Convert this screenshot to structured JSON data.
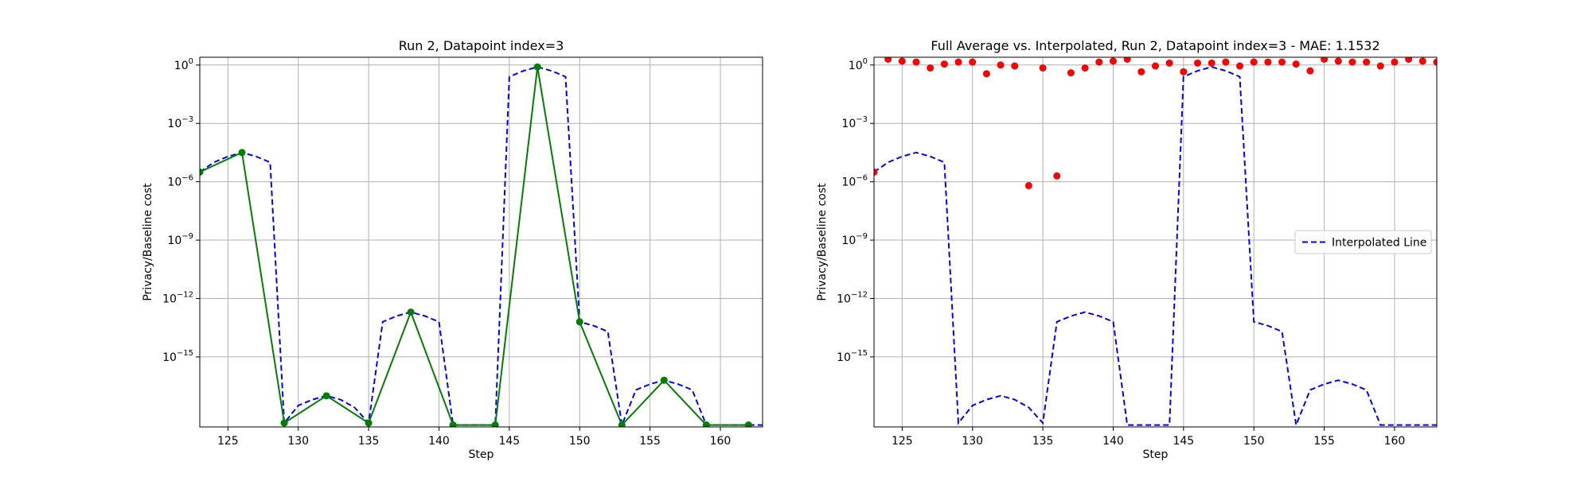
{
  "figure": {
    "background": "#ffffff"
  },
  "chart_data": [
    {
      "type": "line",
      "title": "Run 2, Datapoint index=3",
      "xlabel": "Step",
      "ylabel": "Privacy/Baseline cost",
      "yscale": "log",
      "xlim": [
        123,
        163
      ],
      "ylim_log10": [
        -18.6,
        0.4
      ],
      "grid": true,
      "legend": null,
      "xticks": [
        125,
        130,
        135,
        140,
        145,
        150,
        155,
        160
      ],
      "yticks": [
        {
          "exp": 0,
          "label": "10",
          "sup": "0"
        },
        {
          "exp": -3,
          "label": "10",
          "sup": "−3"
        },
        {
          "exp": -6,
          "label": "10",
          "sup": "−6"
        },
        {
          "exp": -9,
          "label": "10",
          "sup": "−9"
        },
        {
          "exp": -12,
          "label": "10",
          "sup": "−12"
        },
        {
          "exp": -15,
          "label": "10",
          "sup": "−15"
        }
      ],
      "series": [
        {
          "style": "dashed",
          "color": "#0000ff",
          "x": [
            123,
            124,
            125,
            126,
            127,
            128,
            129,
            130,
            131,
            132,
            133,
            134,
            135,
            136,
            137,
            138,
            139,
            140,
            141,
            142,
            143,
            144,
            145,
            146,
            147,
            148,
            149,
            150,
            151,
            152,
            153,
            154,
            155,
            156,
            157,
            158,
            159,
            160,
            161,
            162,
            163
          ],
          "log10_y": [
            -5.5,
            -5,
            -4.7,
            -4.5,
            -4.7,
            -5,
            -18.4,
            -17.5,
            -17.2,
            -17,
            -17.2,
            -17.6,
            -18.4,
            -13.2,
            -12.9,
            -12.7,
            -12.9,
            -13.2,
            -18.5,
            -18.5,
            -18.5,
            -18.5,
            -0.6,
            -0.3,
            -0.1,
            -0.3,
            -0.6,
            -13.2,
            -13.4,
            -13.7,
            -18.5,
            -16.7,
            -16.4,
            -16.2,
            -16.4,
            -16.7,
            -18.5,
            -18.5,
            -18.5,
            -18.5,
            -18.5
          ]
        },
        {
          "style": "solid",
          "color": "#008000",
          "marker": "o",
          "x": [
            123,
            126,
            129,
            132,
            135,
            138,
            141,
            144,
            147,
            150,
            153,
            156,
            159,
            162
          ],
          "log10_y": [
            -5.5,
            -4.5,
            -18.4,
            -17,
            -18.4,
            -12.7,
            -18.5,
            -18.5,
            -0.1,
            -13.2,
            -18.5,
            -16.2,
            -18.5,
            -18.5
          ]
        }
      ]
    },
    {
      "type": "scatter",
      "title": "Full Average vs. Interpolated, Run 2, Datapoint index=3 - MAE: 1.1532",
      "xlabel": "Step",
      "ylabel": "Privacy/Baseline cost",
      "yscale": "log",
      "xlim": [
        123,
        163
      ],
      "ylim_log10": [
        -18.6,
        0.4
      ],
      "grid": true,
      "legend": "center-right",
      "xticks": [
        125,
        130,
        135,
        140,
        145,
        150,
        155,
        160
      ],
      "yticks": [
        {
          "exp": 0,
          "label": "10",
          "sup": "0"
        },
        {
          "exp": -3,
          "label": "10",
          "sup": "−3"
        },
        {
          "exp": -6,
          "label": "10",
          "sup": "−6"
        },
        {
          "exp": -9,
          "label": "10",
          "sup": "−9"
        },
        {
          "exp": -12,
          "label": "10",
          "sup": "−12"
        },
        {
          "exp": -15,
          "label": "10",
          "sup": "−15"
        }
      ],
      "series": [
        {
          "name": "Interpolated Line",
          "style": "dashed",
          "color": "#0000ff",
          "x": [
            123,
            124,
            125,
            126,
            127,
            128,
            129,
            130,
            131,
            132,
            133,
            134,
            135,
            136,
            137,
            138,
            139,
            140,
            141,
            142,
            143,
            144,
            145,
            146,
            147,
            148,
            149,
            150,
            151,
            152,
            153,
            154,
            155,
            156,
            157,
            158,
            159,
            160,
            161,
            162,
            163
          ],
          "log10_y": [
            -5.5,
            -5,
            -4.7,
            -4.5,
            -4.7,
            -5,
            -18.4,
            -17.5,
            -17.2,
            -17,
            -17.2,
            -17.6,
            -18.4,
            -13.2,
            -12.9,
            -12.7,
            -12.9,
            -13.2,
            -18.5,
            -18.5,
            -18.5,
            -18.5,
            -0.6,
            -0.3,
            -0.1,
            -0.3,
            -0.6,
            -13.2,
            -13.4,
            -13.7,
            -18.5,
            -16.7,
            -16.4,
            -16.2,
            -16.4,
            -16.7,
            -18.5,
            -18.5,
            -18.5,
            -18.5,
            -18.5
          ]
        },
        {
          "style": "points",
          "color": "#ff0000",
          "marker": "o",
          "x": [
            123,
            124,
            125,
            126,
            127,
            128,
            129,
            130,
            131,
            132,
            133,
            134,
            135,
            136,
            137,
            138,
            139,
            140,
            141,
            142,
            143,
            144,
            145,
            146,
            147,
            148,
            149,
            150,
            151,
            152,
            153,
            154,
            155,
            156,
            157,
            158,
            159,
            160,
            161,
            162,
            163
          ],
          "log10_y": [
            -5.5,
            0.3,
            0.2,
            0.15,
            -0.15,
            0.05,
            0.15,
            0.15,
            -0.45,
            0,
            -0.05,
            -6.2,
            -0.15,
            -5.7,
            -0.4,
            -0.15,
            0.15,
            0.2,
            0.3,
            -0.35,
            -0.05,
            0.1,
            -0.35,
            0.1,
            0.1,
            0.15,
            -0.05,
            0.15,
            0.15,
            0.15,
            0.05,
            -0.3,
            0.3,
            0.2,
            0.15,
            0.15,
            -0.05,
            0.15,
            0.3,
            0.2,
            0.15
          ]
        }
      ]
    }
  ]
}
